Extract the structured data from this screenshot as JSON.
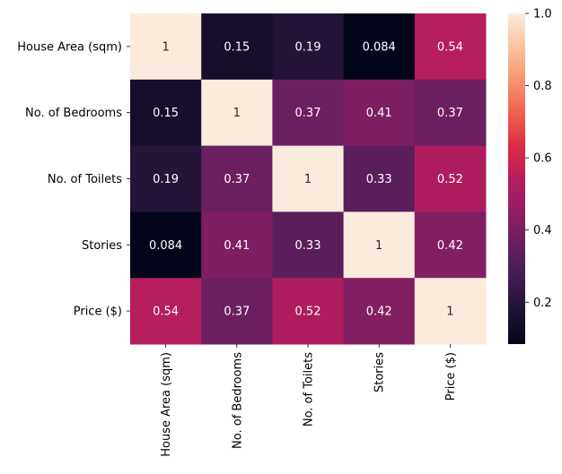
{
  "chart_data": {
    "type": "heatmap",
    "title": "",
    "xlabel": "",
    "ylabel": "",
    "x_labels": [
      "House Area (sqm)",
      "No. of Bedrooms",
      "No. of Toilets",
      "Stories",
      "Price ($)"
    ],
    "y_labels": [
      "House Area (sqm)",
      "No. of Bedrooms",
      "No. of Toilets",
      "Stories",
      "Price ($)"
    ],
    "values": [
      [
        1,
        0.15,
        0.19,
        0.084,
        0.54
      ],
      [
        0.15,
        1,
        0.37,
        0.41,
        0.37
      ],
      [
        0.19,
        0.37,
        1,
        0.33,
        0.52
      ],
      [
        0.084,
        0.41,
        0.33,
        1,
        0.42
      ],
      [
        0.54,
        0.37,
        0.52,
        0.42,
        1
      ]
    ],
    "annotations": [
      [
        "1",
        "0.15",
        "0.19",
        "0.084",
        "0.54"
      ],
      [
        "0.15",
        "1",
        "0.37",
        "0.41",
        "0.37"
      ],
      [
        "0.19",
        "0.37",
        "1",
        "0.33",
        "0.52"
      ],
      [
        "0.084",
        "0.41",
        "0.33",
        "1",
        "0.42"
      ],
      [
        "0.54",
        "0.37",
        "0.52",
        "0.42",
        "1"
      ]
    ],
    "colorbar": {
      "min": 0.084,
      "max": 1.0,
      "ticks": [
        0.2,
        0.4,
        0.6,
        0.8,
        1.0
      ],
      "tick_labels": [
        "0.2",
        "0.4",
        "0.6",
        "0.8",
        "1.0"
      ],
      "colormap": "rocket"
    }
  }
}
